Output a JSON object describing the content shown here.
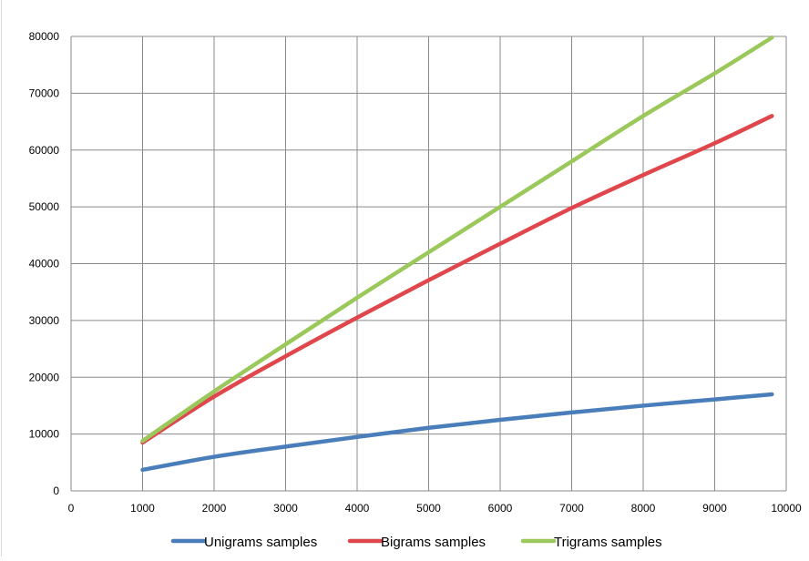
{
  "chart_data": {
    "type": "line",
    "title": "",
    "xlabel": "",
    "ylabel": "",
    "xlim": [
      0,
      10000
    ],
    "ylim": [
      0,
      80000
    ],
    "xticks": [
      0,
      1000,
      2000,
      3000,
      4000,
      5000,
      6000,
      7000,
      8000,
      9000,
      10000
    ],
    "yticks": [
      0,
      10000,
      20000,
      30000,
      40000,
      50000,
      60000,
      70000,
      80000
    ],
    "grid": true,
    "legend_position": "bottom",
    "series": [
      {
        "name": "Unigrams samples",
        "color": "#4a7ebb",
        "x": [
          1000,
          2000,
          3000,
          4000,
          5000,
          6000,
          7000,
          8000,
          9000,
          9800
        ],
        "values": [
          3700,
          6000,
          7800,
          9500,
          11100,
          12500,
          13800,
          15000,
          16100,
          17000
        ]
      },
      {
        "name": "Bigrams samples",
        "color": "#e0474c",
        "x": [
          1000,
          2000,
          3000,
          4000,
          5000,
          6000,
          7000,
          8000,
          9000,
          9800
        ],
        "values": [
          8500,
          16600,
          23700,
          30500,
          37100,
          43500,
          49800,
          55600,
          61200,
          66000
        ]
      },
      {
        "name": "Trigrams samples",
        "color": "#9bc85a",
        "x": [
          1000,
          2000,
          3000,
          4000,
          5000,
          6000,
          7000,
          8000,
          9000,
          9800
        ],
        "values": [
          8800,
          17500,
          25800,
          34000,
          42000,
          50000,
          58000,
          66000,
          73500,
          79800
        ]
      }
    ]
  }
}
